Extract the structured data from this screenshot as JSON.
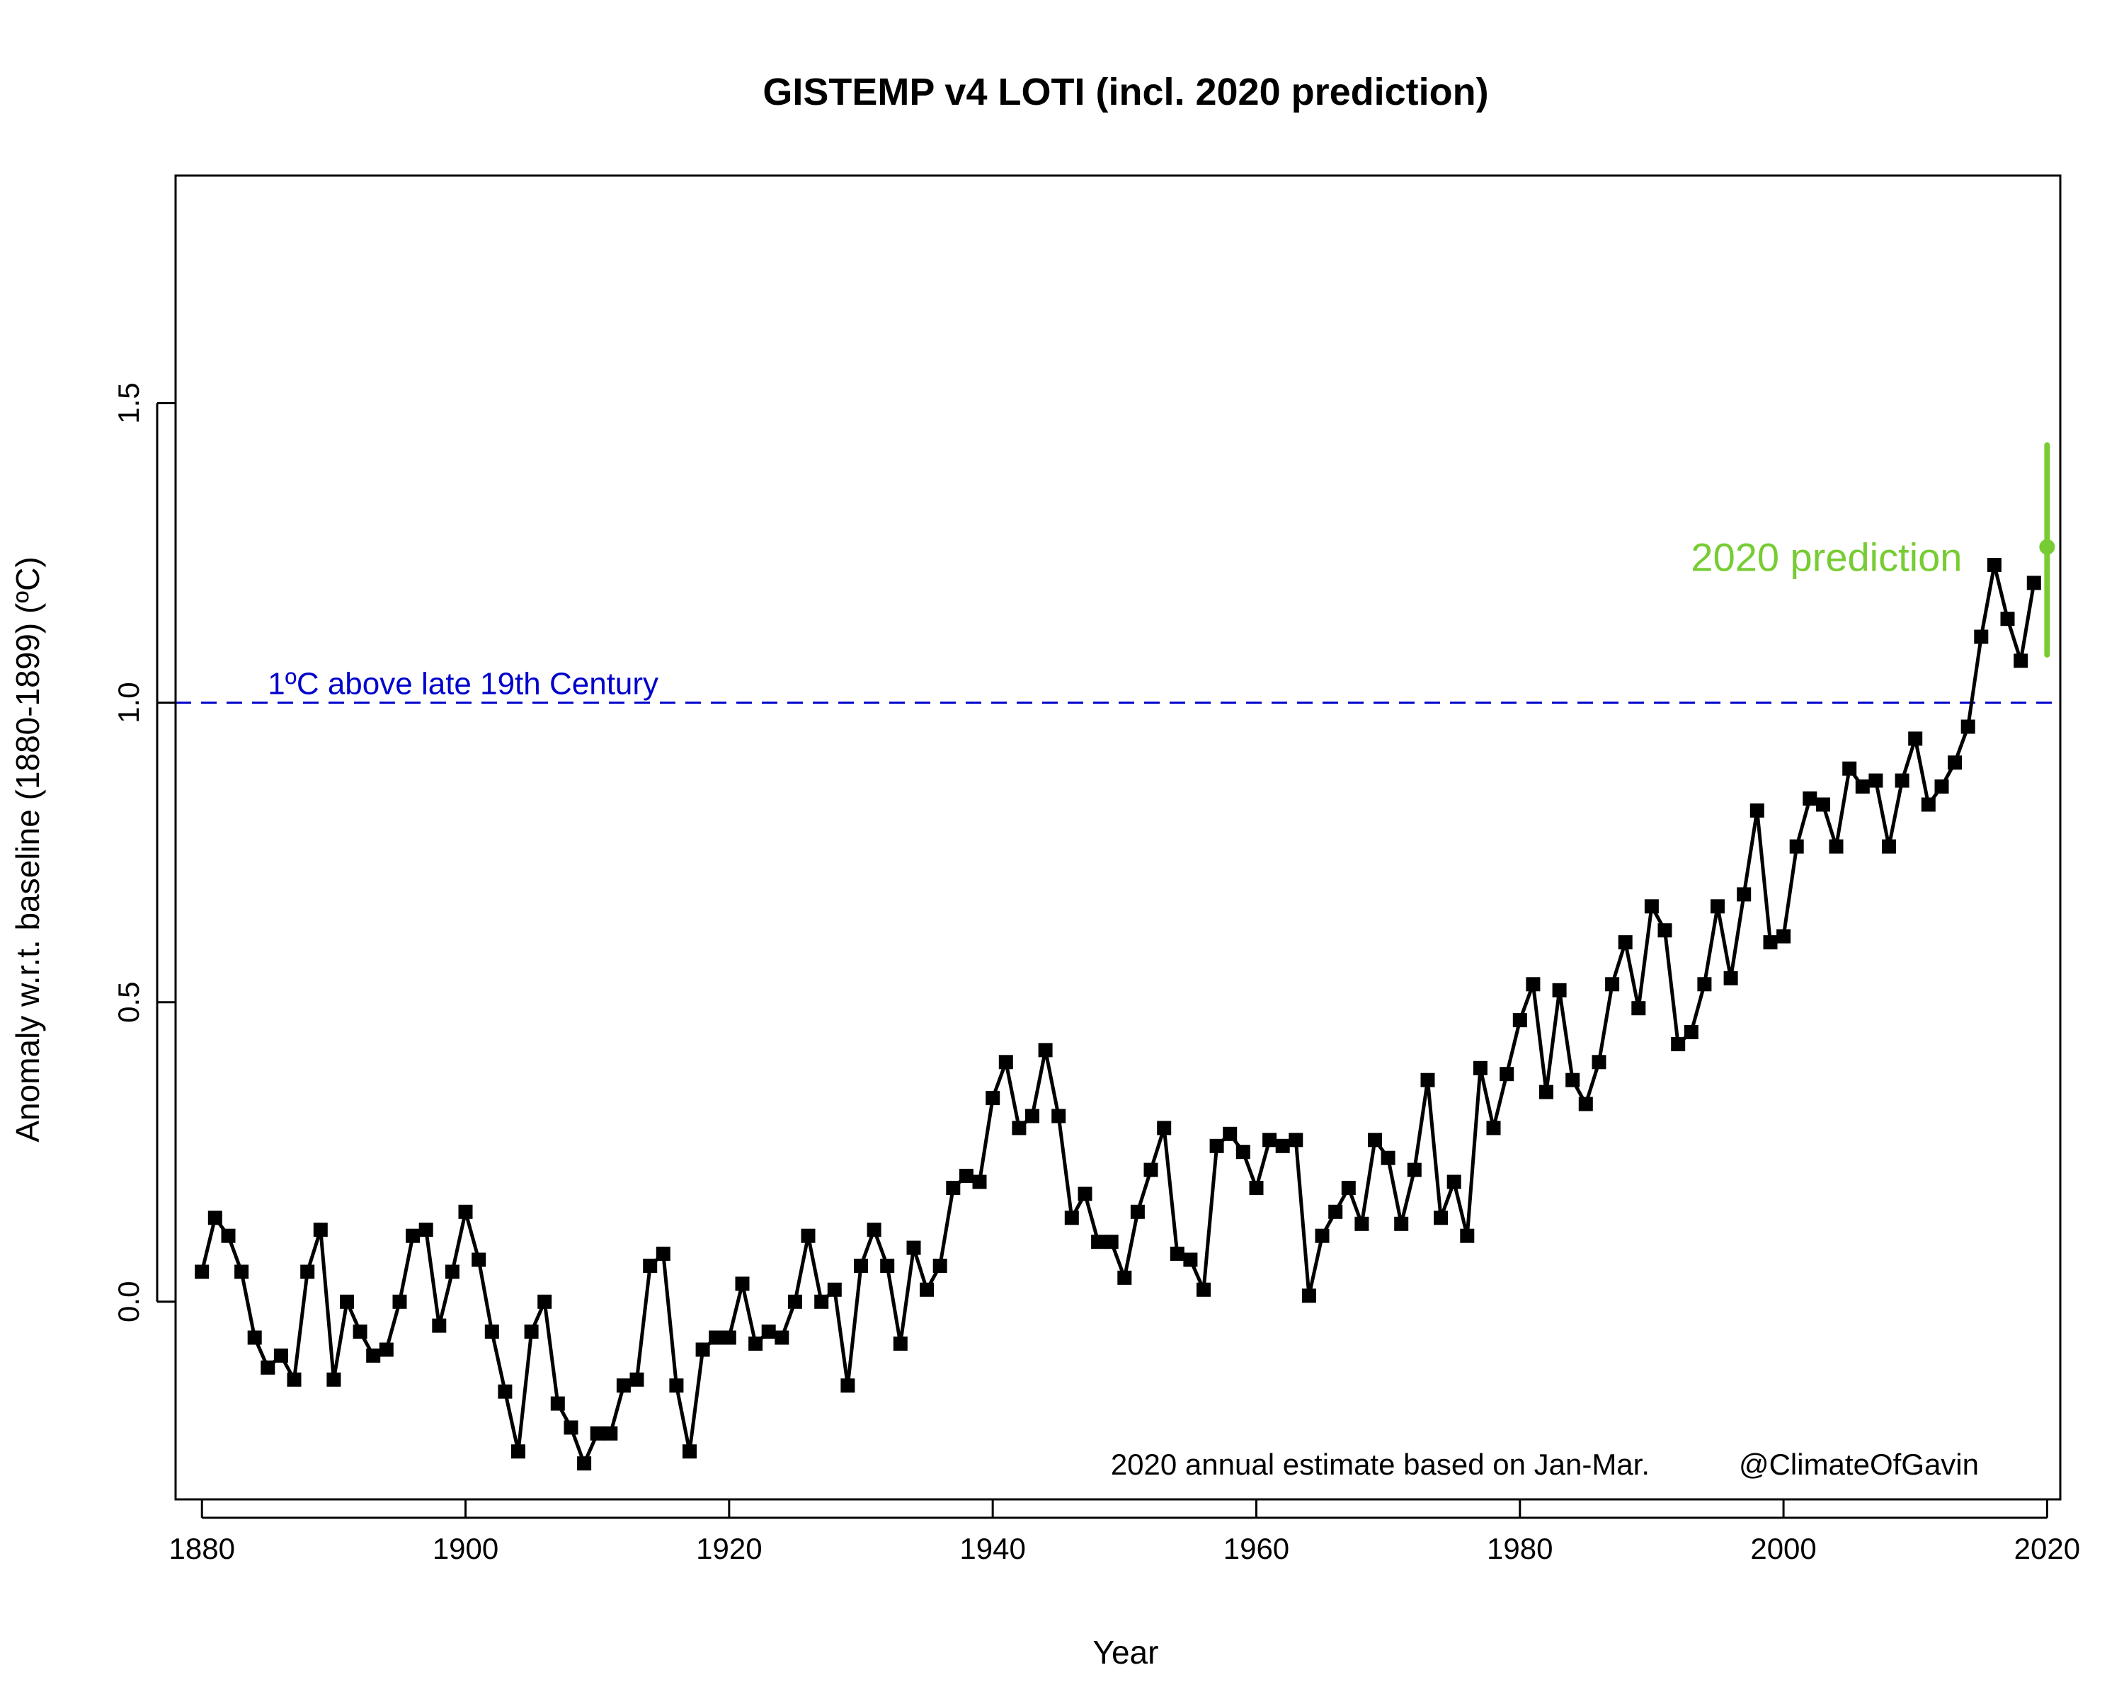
{
  "chart_data": {
    "type": "line",
    "title": "GISTEMP v4 LOTI (incl. 2020 prediction)",
    "xlabel": "Year",
    "ylabel": "Anomaly w.r.t. baseline (1880-1899) (ºC)",
    "xlim": [
      1878,
      2021
    ],
    "ylim": [
      -0.33,
      1.88
    ],
    "xticks": [
      {
        "value": 1880,
        "label": "1880"
      },
      {
        "value": 1900,
        "label": "1900"
      },
      {
        "value": 1920,
        "label": "1920"
      },
      {
        "value": 1940,
        "label": "1940"
      },
      {
        "value": 1960,
        "label": "1960"
      },
      {
        "value": 1980,
        "label": "1980"
      },
      {
        "value": 2000,
        "label": "2000"
      },
      {
        "value": 2020,
        "label": "2020"
      }
    ],
    "yticks": [
      {
        "value": 0.0,
        "label": "0.0"
      },
      {
        "value": 0.5,
        "label": "0.5"
      },
      {
        "value": 1.0,
        "label": "1.0"
      },
      {
        "value": 1.5,
        "label": "1.5"
      }
    ],
    "grid": false,
    "series": [
      {
        "x_start": 1880,
        "x_end": 2019,
        "color": "#000000",
        "marker": "square",
        "values": [
          0.05,
          0.14,
          0.11,
          0.05,
          -0.06,
          -0.11,
          -0.09,
          -0.13,
          0.05,
          0.12,
          -0.13,
          0.0,
          -0.05,
          -0.09,
          -0.08,
          0.0,
          0.11,
          0.12,
          -0.04,
          0.05,
          0.15,
          0.07,
          -0.05,
          -0.15,
          -0.25,
          -0.05,
          0.0,
          -0.17,
          -0.21,
          -0.27,
          -0.22,
          -0.22,
          -0.14,
          -0.13,
          0.06,
          0.08,
          -0.14,
          -0.25,
          -0.08,
          -0.06,
          -0.06,
          0.03,
          -0.07,
          -0.05,
          -0.06,
          0.0,
          0.11,
          0.0,
          0.02,
          -0.14,
          0.06,
          0.12,
          0.06,
          -0.07,
          0.09,
          0.02,
          0.06,
          0.19,
          0.21,
          0.2,
          0.34,
          0.4,
          0.29,
          0.31,
          0.42,
          0.31,
          0.14,
          0.18,
          0.1,
          0.1,
          0.04,
          0.15,
          0.22,
          0.29,
          0.08,
          0.07,
          0.02,
          0.26,
          0.28,
          0.25,
          0.19,
          0.27,
          0.26,
          0.27,
          0.01,
          0.11,
          0.15,
          0.19,
          0.13,
          0.27,
          0.24,
          0.13,
          0.22,
          0.37,
          0.14,
          0.2,
          0.11,
          0.39,
          0.29,
          0.38,
          0.47,
          0.53,
          0.35,
          0.52,
          0.37,
          0.33,
          0.4,
          0.53,
          0.6,
          0.49,
          0.66,
          0.62,
          0.43,
          0.45,
          0.53,
          0.66,
          0.54,
          0.68,
          0.82,
          0.6,
          0.61,
          0.76,
          0.84,
          0.83,
          0.76,
          0.89,
          0.86,
          0.87,
          0.76,
          0.87,
          0.94,
          0.83,
          0.86,
          0.9,
          0.96,
          1.11,
          1.23,
          1.14,
          1.07,
          1.2
        ]
      }
    ],
    "prediction": {
      "x": 2020,
      "value": 1.26,
      "low": 1.08,
      "high": 1.43,
      "color": "#77cc33",
      "label": "2020 prediction"
    },
    "reference_line": {
      "y": 1.0,
      "color": "#0000cc",
      "style": "dashed",
      "label": "1ºC above late 19th Century"
    },
    "annotation": "2020 annual estimate based on Jan-Mar.",
    "credit": "@ClimateOfGavin"
  }
}
